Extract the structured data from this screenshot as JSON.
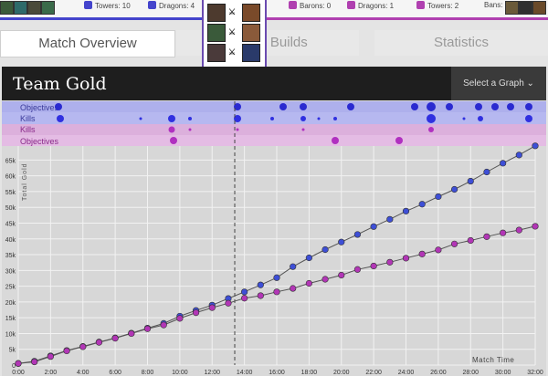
{
  "top_stats": {
    "blue_bans_label": "Bans:",
    "blue_towers": "Towers: 10",
    "blue_dragons": "Dragons: 4",
    "red_barons": "Barons: 0",
    "red_dragons": "Dragons: 1",
    "red_towers": "Towers: 2",
    "red_bans_label": "Bans:",
    "colors": {
      "blue": "#4444cc",
      "purple": "#b040b0"
    }
  },
  "tabs": [
    {
      "label": "Match Overview",
      "active": true
    },
    {
      "label": "Player Builds",
      "active": false
    },
    {
      "label": "Statistics",
      "active": false
    }
  ],
  "panel": {
    "title": "Team Gold",
    "select_label": "Select a Graph ⌄"
  },
  "timeline": {
    "rows": [
      {
        "label": "Objectives",
        "team": "blue"
      },
      {
        "label": "Kills",
        "team": "blue"
      },
      {
        "label": "Kills",
        "team": "purple"
      },
      {
        "label": "Objectives",
        "team": "purple"
      }
    ]
  },
  "chart_data": {
    "type": "line",
    "xlabel": "Match Time",
    "ylabel": "Total Gold",
    "x_ticks": [
      "0:00",
      "2:00",
      "4:00",
      "6:00",
      "8:00",
      "10:00",
      "12:00",
      "14:00",
      "16:00",
      "18:00",
      "20:00",
      "22:00",
      "24:00",
      "26:00",
      "28:00",
      "30:00",
      "32:00"
    ],
    "y_ticks": [
      "0",
      "5k",
      "10k",
      "15k",
      "20k",
      "25k",
      "30k",
      "35k",
      "40k",
      "45k",
      "50k",
      "55k",
      "60k",
      "65k"
    ],
    "xlim": [
      0,
      32
    ],
    "ylim": [
      0,
      68000
    ],
    "marker_minute": 13.4,
    "series": [
      {
        "team": "blue",
        "color": "#3e4fd6",
        "x": [
          0,
          1,
          2,
          3,
          4,
          5,
          6,
          7,
          8,
          9,
          10,
          11,
          12,
          13,
          14,
          15,
          16,
          17,
          18,
          19,
          20,
          21,
          22,
          23,
          24,
          25,
          26,
          27,
          28,
          29,
          30,
          31,
          32
        ],
        "values": [
          500,
          1200,
          2900,
          4600,
          5900,
          7300,
          8600,
          10100,
          11700,
          13200,
          15500,
          17300,
          19000,
          21100,
          23200,
          25400,
          27700,
          31200,
          34000,
          36600,
          39000,
          41400,
          43900,
          46200,
          48800,
          51000,
          53400,
          55700,
          58300,
          61200,
          64000,
          66600,
          69500
        ]
      },
      {
        "team": "purple",
        "color": "#b236b6",
        "x": [
          0,
          1,
          2,
          3,
          4,
          5,
          6,
          7,
          8,
          9,
          10,
          11,
          12,
          13,
          14,
          15,
          16,
          17,
          18,
          19,
          20,
          21,
          22,
          23,
          24,
          25,
          26,
          27,
          28,
          29,
          30,
          31,
          32
        ],
        "values": [
          500,
          1000,
          2700,
          4500,
          5800,
          7200,
          8500,
          10000,
          11500,
          12700,
          14800,
          16600,
          18200,
          19600,
          21200,
          22000,
          23200,
          24300,
          25900,
          27200,
          28500,
          30300,
          31400,
          32600,
          33900,
          35200,
          36500,
          38400,
          39500,
          40700,
          41900,
          42800,
          44000
        ]
      }
    ]
  }
}
